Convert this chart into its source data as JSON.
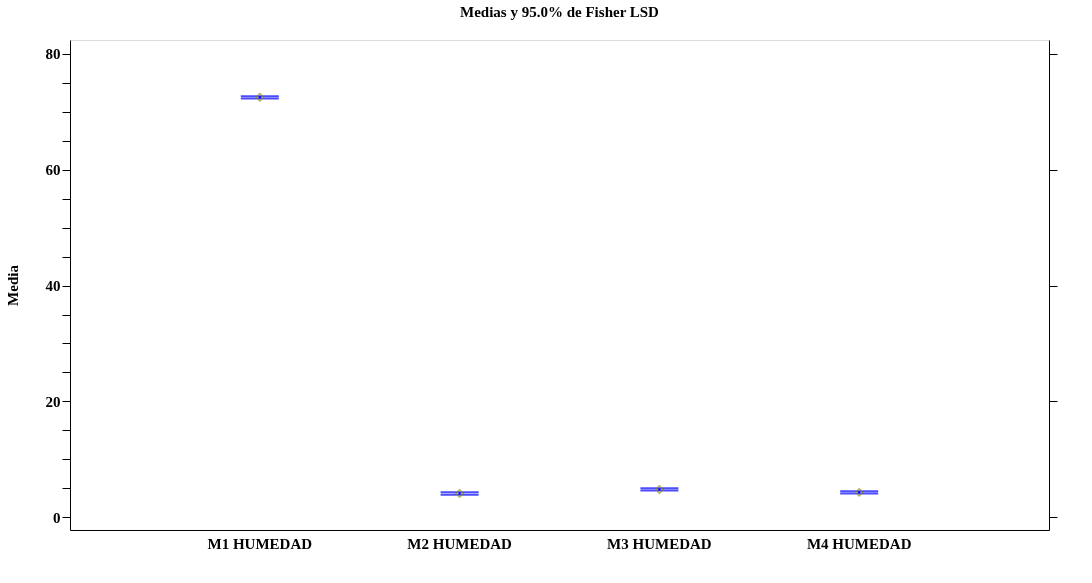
{
  "chart_data": {
    "type": "scatter",
    "title": "Medias y 95.0% de Fisher LSD",
    "ylabel": "Media",
    "categories": [
      "M1 HUMEDAD",
      "M2 HUMEDAD",
      "M3 HUMEDAD",
      "M4 HUMEDAD"
    ],
    "series": [
      {
        "color": "#0000ff",
        "colors": [
          "#8c8c00",
          "#8c8c00",
          "#8c8c00",
          "#8c8c00"
        ],
        "values": [
          72.5,
          4.1,
          4.8,
          4.3
        ],
        "errors": [
          0.2,
          0.2,
          0.2,
          0.2
        ]
      }
    ],
    "marker": "diamond",
    "legend": false,
    "ylim": [
      -2.2,
      82.4
    ],
    "yticks": [
      0,
      {
        "value": 5,
        "label": null
      },
      {
        "value": 10,
        "label": null
      },
      {
        "value": 15,
        "label": null
      },
      20,
      {
        "value": 25,
        "label": null
      },
      {
        "value": 30,
        "label": null
      },
      {
        "value": 35,
        "label": null
      },
      40,
      {
        "value": 45,
        "label": null
      },
      {
        "value": 50,
        "label": null
      },
      {
        "value": 55,
        "label": null
      },
      60,
      {
        "value": 65,
        "label": null
      },
      {
        "value": 70,
        "label": null
      },
      {
        "value": 75,
        "label": null
      },
      80
    ],
    "grid": false
  }
}
